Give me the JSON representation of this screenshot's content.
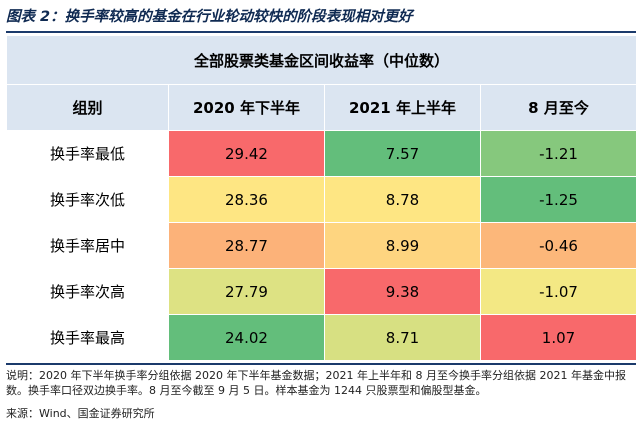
{
  "figure_title": "图表 2：换手率较高的基金在行业轮动较快的阶段表现相对更好",
  "table": {
    "caption": "全部股票类基金区间收益率（中位数）",
    "headers": [
      "组别",
      "2020 年下半年",
      "2021 年上半年",
      "8 月至今"
    ],
    "rows": [
      {
        "label": "换手率最低",
        "values": [
          "29.42",
          "7.57",
          "-1.21"
        ],
        "colors": [
          "#f8696b",
          "#63be7b",
          "#86c87d"
        ]
      },
      {
        "label": "换手率次低",
        "values": [
          "28.36",
          "8.78",
          "-1.25"
        ],
        "colors": [
          "#fee683",
          "#fee683",
          "#63be7b"
        ]
      },
      {
        "label": "换手率居中",
        "values": [
          "28.77",
          "8.99",
          "-0.46"
        ],
        "colors": [
          "#fcb279",
          "#fed580",
          "#fcb77a"
        ]
      },
      {
        "label": "换手率次高",
        "values": [
          "27.79",
          "9.38",
          "-1.07"
        ],
        "colors": [
          "#dde283",
          "#f8696b",
          "#f3e884"
        ]
      },
      {
        "label": "换手率最高",
        "values": [
          "24.02",
          "8.71",
          "1.07"
        ],
        "colors": [
          "#63be7b",
          "#d7e082",
          "#f8696b"
        ]
      }
    ]
  },
  "note_text": "说明：2020 年下半年换手率分组依据 2020 年下半年基金数据；2021 年上半年和 8 月至今换手率分组依据 2021 年基金中报数。换手率口径双边换手率。8 月至今截至 9 月 5 日。样本基金为 1244 只股票型和偏股型基金。",
  "source_text": "来源：Wind、国金证券研究所"
}
